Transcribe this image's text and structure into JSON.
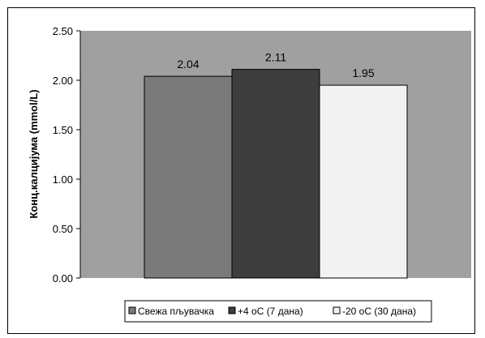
{
  "chart_data": {
    "type": "bar",
    "title": "",
    "xlabel": "",
    "ylabel": "Конц.калцијума (mmol/L)",
    "ylim": [
      0,
      2.5
    ],
    "yticks": [
      "0.00",
      "0.50",
      "1.00",
      "1.50",
      "2.00",
      "2.50"
    ],
    "grid": false,
    "legend_position": "bottom",
    "series": [
      {
        "name": "Свежа пљувачка",
        "value": 2.04,
        "label": "2.04",
        "color": "#7a7a7a"
      },
      {
        "name": "+4 oC (7 дана)",
        "value": 2.11,
        "label": "2.11",
        "color": "#3d3d3d"
      },
      {
        "name": "-20 oC (30 дана)",
        "value": 1.95,
        "label": "1.95",
        "color": "#f2f2f2"
      }
    ],
    "plot_background": "#a0a0a0"
  }
}
